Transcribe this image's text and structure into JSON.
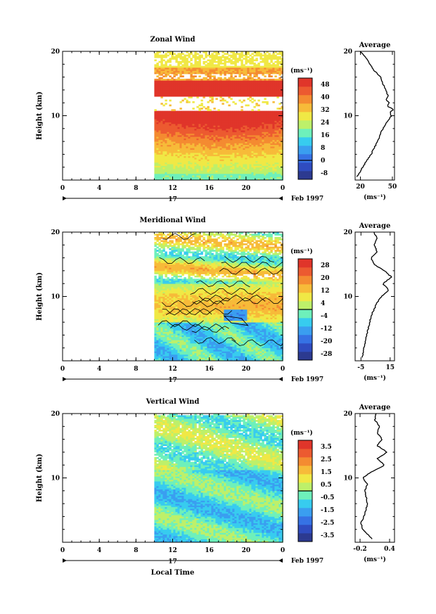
{
  "chart_data": [
    {
      "type": "heatmap",
      "title": "Zonal Wind",
      "ylabel": "Height (km)",
      "xlabel": "",
      "x_ticks": [
        "0",
        "4",
        "8",
        "12",
        "16",
        "20",
        "0"
      ],
      "date_label": "17",
      "date_suffix": "Feb 1997",
      "y_ticks": [
        "20",
        "10"
      ],
      "ylim": [
        0,
        20
      ],
      "unit": "(ms⁻¹)",
      "colorbar_ticks": [
        "48",
        "40",
        "32",
        "24",
        "16",
        "8",
        "0",
        "-8"
      ],
      "colorbar_range": [
        -12,
        52
      ],
      "data_start_hour": 10,
      "profile": {
        "title": "Average",
        "xlabel": "(ms⁻¹)",
        "x_ticks": [
          "20",
          "50"
        ],
        "x_tick_values": [
          20,
          50
        ],
        "xlim": [
          15,
          52
        ],
        "y_ticks": [
          "20",
          "10"
        ],
        "heights": [
          0.5,
          2,
          4,
          6,
          8,
          9,
          10,
          10.5,
          11,
          11.5,
          12,
          12.5,
          13,
          14,
          15,
          16,
          17,
          18,
          19,
          20
        ],
        "values": [
          17,
          22,
          30,
          36,
          41,
          45,
          49,
          48,
          51,
          45,
          47,
          44,
          46,
          44,
          41,
          39,
          33,
          29,
          25,
          20
        ]
      }
    },
    {
      "type": "heatmap",
      "title": "Meridional Wind",
      "ylabel": "Height (km)",
      "xlabel": "",
      "x_ticks": [
        "0",
        "4",
        "8",
        "12",
        "16",
        "20",
        "0"
      ],
      "date_label": "17",
      "date_suffix": "Feb 1997",
      "y_ticks": [
        "20",
        "10"
      ],
      "ylim": [
        0,
        20
      ],
      "unit": "(ms⁻¹)",
      "colorbar_ticks": [
        "28",
        "20",
        "12",
        "4",
        "-4",
        "-12",
        "-20",
        "-28"
      ],
      "colorbar_range": [
        -32,
        32
      ],
      "data_start_hour": 10,
      "profile": {
        "title": "Average",
        "xlabel": "(ms⁻¹)",
        "x_ticks": [
          "-5",
          "15"
        ],
        "x_tick_values": [
          -5,
          15
        ],
        "xlim": [
          -9,
          18
        ],
        "y_ticks": [
          "20",
          "10"
        ],
        "heights": [
          0.5,
          2,
          4,
          5,
          6,
          7,
          8,
          9,
          10,
          11,
          12,
          13,
          14,
          15,
          16,
          17,
          18,
          19,
          20
        ],
        "values": [
          -4,
          -3,
          -1,
          0,
          1,
          2,
          4,
          6,
          9,
          14,
          10,
          16,
          11,
          4,
          2,
          6,
          4,
          6,
          4
        ]
      }
    },
    {
      "type": "heatmap",
      "title": "Vertical Wind",
      "ylabel": "Height (km)",
      "xlabel": "Local Time",
      "x_ticks": [
        "0",
        "4",
        "8",
        "12",
        "16",
        "20",
        "0"
      ],
      "date_label": "17",
      "date_suffix": "Feb 1997",
      "y_ticks": [
        "20",
        "10"
      ],
      "ylim": [
        0,
        20
      ],
      "unit": "(ms⁻¹)",
      "colorbar_ticks": [
        "3.5",
        "2.5",
        "1.5",
        "0.5",
        "-0.5",
        "-1.5",
        "-2.5",
        "-3.5"
      ],
      "colorbar_range": [
        -4,
        4
      ],
      "data_start_hour": 10,
      "profile": {
        "title": "Average",
        "xlabel": "(ms⁻¹)",
        "x_ticks": [
          "-0.2",
          "0.4"
        ],
        "x_tick_values": [
          -0.2,
          0.4
        ],
        "xlim": [
          -0.3,
          0.5
        ],
        "y_ticks": [
          "20",
          "10"
        ],
        "heights": [
          0.5,
          2,
          3,
          4,
          6,
          8,
          9,
          10,
          11,
          12,
          13,
          14,
          15,
          16,
          17,
          18,
          19,
          20
        ],
        "values": [
          0.05,
          -0.15,
          -0.18,
          -0.12,
          -0.05,
          -0.1,
          -0.05,
          -0.15,
          0.05,
          0.3,
          0.15,
          0.35,
          0.15,
          0.25,
          0.15,
          0.2,
          0.1,
          0.12
        ]
      }
    }
  ]
}
